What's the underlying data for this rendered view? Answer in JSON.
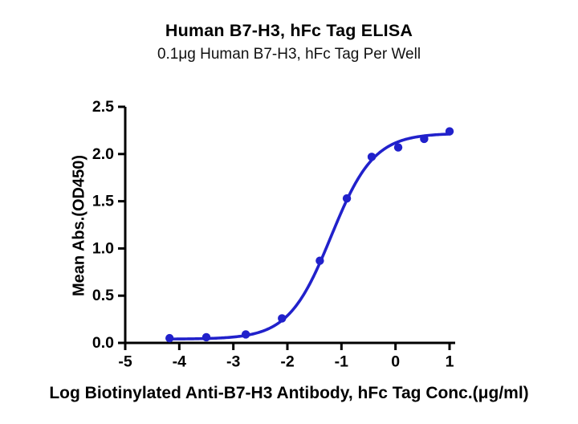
{
  "chart_data": {
    "type": "scatter",
    "title": "Human B7-H3, hFc Tag ELISA",
    "subtitle": "0.1μg Human B7-H3, hFc Tag Per Well",
    "xlabel": "Log Biotinylated Anti-B7-H3 Antibody, hFc Tag Conc.(μg/ml)",
    "ylabel": "Mean Abs.(OD450)",
    "xlim": [
      -5,
      1
    ],
    "ylim": [
      0,
      2.5
    ],
    "xticks": [
      -5,
      -4,
      -3,
      -2,
      -1,
      0,
      1
    ],
    "yticks": [
      0,
      0.5,
      1,
      1.5,
      2,
      2.5
    ],
    "grid": false,
    "legend": "none",
    "axis_color": "#000000",
    "series": [
      {
        "name": "Biotinylated Anti-B7-H3 Antibody, hFc Tag",
        "marker": "circle",
        "color": "#2121CB",
        "x": [
          -4.18,
          -3.5,
          -2.77,
          -2.1,
          -1.4,
          -0.9,
          -0.44,
          0.05,
          0.53,
          1.0
        ],
        "y": [
          0.05,
          0.06,
          0.09,
          0.26,
          0.87,
          1.53,
          1.97,
          2.07,
          2.16,
          2.24
        ]
      }
    ],
    "fit_curve": {
      "model": "4PL sigmoid",
      "bottom": 0.04,
      "top": 2.22,
      "log_ec50": -1.19,
      "hill_slope": 1.1,
      "x_start": -4.18,
      "x_end": 1.0
    }
  }
}
